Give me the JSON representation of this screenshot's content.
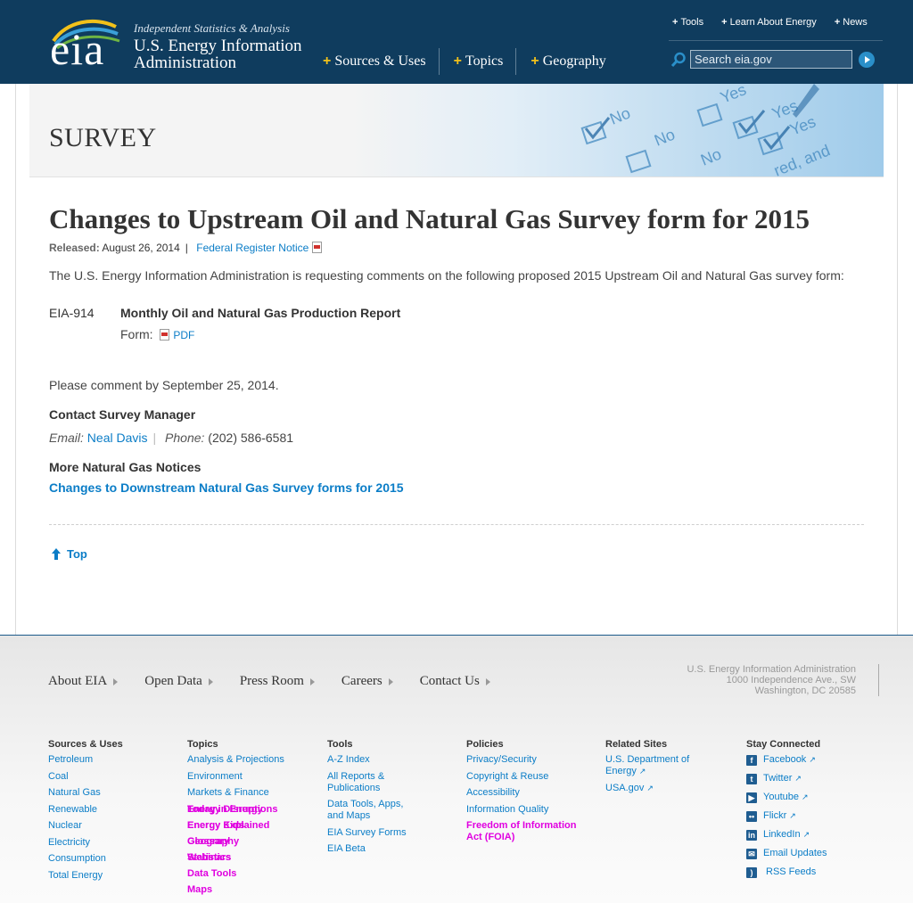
{
  "header": {
    "logo_text": "eia",
    "tagline": "Independent Statistics & Analysis",
    "org_line1": "U.S. Energy Information",
    "org_line2": "Administration",
    "nav": [
      "Sources & Uses",
      "Topics",
      "Geography"
    ],
    "top_links": [
      "Tools",
      "Learn About Energy",
      "News"
    ],
    "search_placeholder": "Search eia.gov",
    "accent_color": "#f2c11a",
    "bg_color": "#0f3c5e"
  },
  "banner": {
    "title": "SURVEY",
    "image_words": [
      "No",
      "Yes",
      "No",
      "Yes",
      "No",
      "Yes",
      "red, and"
    ]
  },
  "article": {
    "title": "Changes to Upstream Oil and Natural Gas Survey form for 2015",
    "released_label": "Released:",
    "released_date": "August 26, 2014",
    "register_link": "Federal Register Notice",
    "intro": "The U.S. Energy Information Administration is requesting comments on the following proposed 2015 Upstream Oil and Natural Gas survey form:",
    "form_code": "EIA-914",
    "form_title": "Monthly Oil and Natural Gas Production Report",
    "form_label": "Form:",
    "form_link": "PDF",
    "comment": "Please comment by September 25, 2014.",
    "contact_heading": "Contact Survey Manager",
    "email_label": "Email:",
    "contact_name": "Neal Davis",
    "phone_label": "Phone:",
    "phone": "(202) 586-6581",
    "more_heading": "More Natural Gas Notices",
    "more_link": "Changes to Downstream Natural Gas Survey forms for 2015",
    "top_link": "Top"
  },
  "footer": {
    "nav": [
      "About EIA",
      "Open Data",
      "Press Room",
      "Careers",
      "Contact Us"
    ],
    "address": [
      "U.S. Energy Information Administration",
      "1000 Independence Ave., SW",
      "Washington, DC 20585"
    ],
    "columns": [
      {
        "heading": "Sources & Uses",
        "links": [
          "Petroleum",
          "Coal",
          "Natural Gas",
          "Renewable",
          "Nuclear",
          "Electricity",
          "Consumption",
          "Total Energy"
        ]
      },
      {
        "heading": "Topics",
        "links": [
          "Analysis & Projections",
          "Environment",
          "Markets & Finance"
        ],
        "overlap_links": [
          "Today in Energy",
          "Energy Disruptions",
          "Energy Explained",
          "Geography",
          "Glossary",
          "Energy Kids",
          "Statistics",
          "Data Tools",
          "Maps",
          "Webinars"
        ]
      },
      {
        "heading": "Tools",
        "links": [
          "A-Z Index",
          "All Reports & Publications",
          "Data Tools, Apps, and Maps",
          "EIA Survey Forms",
          "EIA Beta"
        ]
      },
      {
        "heading": "Policies",
        "links": [
          "Privacy/Security",
          "Copyright & Reuse",
          "Accessibility",
          "Information Quality"
        ],
        "highlight_link": "Freedom of Information Act (FOIA)"
      },
      {
        "heading": "Related Sites",
        "links": [
          "U.S. Department of Energy",
          "USA.gov"
        ]
      },
      {
        "heading": "Stay Connected",
        "links": [
          "Facebook",
          "Twitter",
          "Youtube",
          "Flickr",
          "LinkedIn",
          "Email Updates",
          "RSS Feeds"
        ],
        "icons": [
          "facebook-icon",
          "twitter-icon",
          "youtube-icon",
          "flickr-icon",
          "linkedin-icon",
          "email-icon",
          "rss-icon"
        ]
      }
    ]
  }
}
